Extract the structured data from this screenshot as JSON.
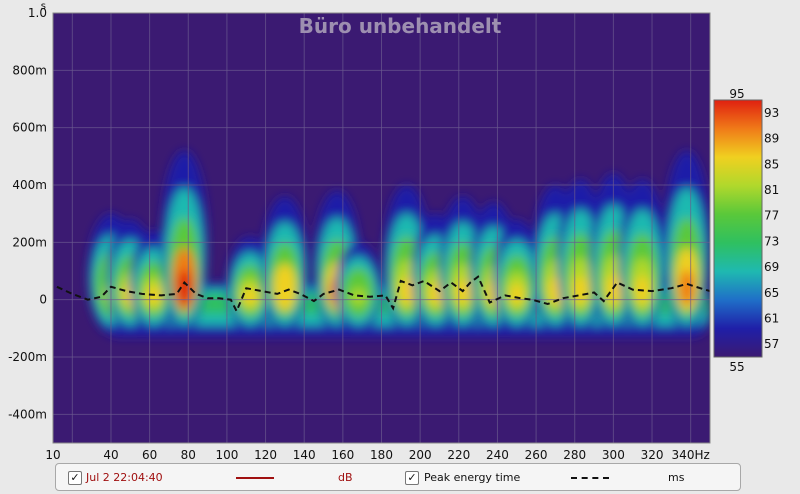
{
  "chart_data": {
    "type": "heatmap",
    "title": "Büro unbehandelt",
    "xlabel": "",
    "ylabel": "",
    "x_unit": "Hz",
    "y_unit": "s",
    "xlim": [
      10,
      350
    ],
    "ylim": [
      -0.5,
      1.0
    ],
    "x_ticks": [
      10,
      20,
      40,
      60,
      80,
      100,
      120,
      140,
      160,
      180,
      200,
      220,
      240,
      260,
      280,
      300,
      320,
      340
    ],
    "x_tick_labels": [
      "10",
      "",
      "40",
      "60",
      "80",
      "100",
      "120",
      "140",
      "160",
      "180",
      "200",
      "220",
      "240",
      "260",
      "280",
      "300",
      "320",
      "340Hz"
    ],
    "y_ticks": [
      -0.4,
      -0.2,
      0,
      0.2,
      0.4,
      0.6,
      0.8,
      1.0
    ],
    "y_tick_labels": [
      "-400m",
      "-200m",
      "0",
      "200m",
      "400m",
      "600m",
      "800m",
      "1.0"
    ],
    "y_unit_label": "s",
    "grid": true,
    "background_color": "#3b1a72",
    "colorbar": {
      "min": 55,
      "max": 95,
      "ticks": [
        93,
        89,
        85,
        81,
        77,
        73,
        69,
        65,
        61,
        57
      ],
      "top_label": "95",
      "bottom_label": "55",
      "colors": [
        "#3b1a72",
        "#1f1fa8",
        "#1f6fc8",
        "#1fb9b0",
        "#2fc060",
        "#5ac83a",
        "#b0d82c",
        "#f0d020",
        "#f07a18",
        "#e02010"
      ]
    },
    "peaks": [
      {
        "f": 40,
        "t": 0.3,
        "level": 82
      },
      {
        "f": 50,
        "t": 0.28,
        "level": 85
      },
      {
        "f": 62,
        "t": 0.24,
        "level": 86
      },
      {
        "f": 78,
        "t": 0.52,
        "level": 94
      },
      {
        "f": 112,
        "t": 0.22,
        "level": 84
      },
      {
        "f": 130,
        "t": 0.36,
        "level": 88
      },
      {
        "f": 157,
        "t": 0.38,
        "level": 89
      },
      {
        "f": 168,
        "t": 0.2,
        "level": 83
      },
      {
        "f": 193,
        "t": 0.4,
        "level": 86
      },
      {
        "f": 208,
        "t": 0.3,
        "level": 87
      },
      {
        "f": 222,
        "t": 0.36,
        "level": 86
      },
      {
        "f": 238,
        "t": 0.34,
        "level": 85
      },
      {
        "f": 250,
        "t": 0.28,
        "level": 84
      },
      {
        "f": 270,
        "t": 0.4,
        "level": 85
      },
      {
        "f": 283,
        "t": 0.42,
        "level": 84
      },
      {
        "f": 300,
        "t": 0.44,
        "level": 87
      },
      {
        "f": 315,
        "t": 0.42,
        "level": 86
      },
      {
        "f": 338,
        "t": 0.52,
        "level": 89
      }
    ],
    "series": [
      {
        "name": "Peak energy time",
        "x": [
          12,
          20,
          28,
          35,
          40,
          48,
          56,
          66,
          74,
          78,
          84,
          90,
          96,
          102,
          105,
          110,
          118,
          126,
          132,
          138,
          145,
          150,
          158,
          166,
          174,
          182,
          186,
          190,
          196,
          202,
          210,
          216,
          222,
          226,
          230,
          236,
          244,
          252,
          258,
          266,
          274,
          282,
          290,
          295,
          302,
          310,
          320,
          330,
          338,
          345,
          350
        ],
        "y": [
          0.045,
          0.02,
          0.0,
          0.01,
          0.045,
          0.03,
          0.02,
          0.015,
          0.02,
          0.06,
          0.02,
          0.005,
          0.005,
          0.0,
          -0.04,
          0.04,
          0.03,
          0.02,
          0.035,
          0.02,
          -0.005,
          0.02,
          0.035,
          0.015,
          0.01,
          0.015,
          -0.03,
          0.065,
          0.05,
          0.065,
          0.03,
          0.06,
          0.03,
          0.06,
          0.08,
          -0.01,
          0.015,
          0.005,
          0.0,
          -0.015,
          0.005,
          0.015,
          0.025,
          -0.005,
          0.06,
          0.035,
          0.03,
          0.04,
          0.055,
          0.04,
          0.03
        ]
      }
    ]
  },
  "legend": {
    "item1_label": "Jul 2 22:04:40",
    "item1_unit": "dB",
    "item1_color": "#a01010",
    "item2_label": "Peak energy time",
    "item2_unit": "ms",
    "check_glyph": "✓"
  }
}
